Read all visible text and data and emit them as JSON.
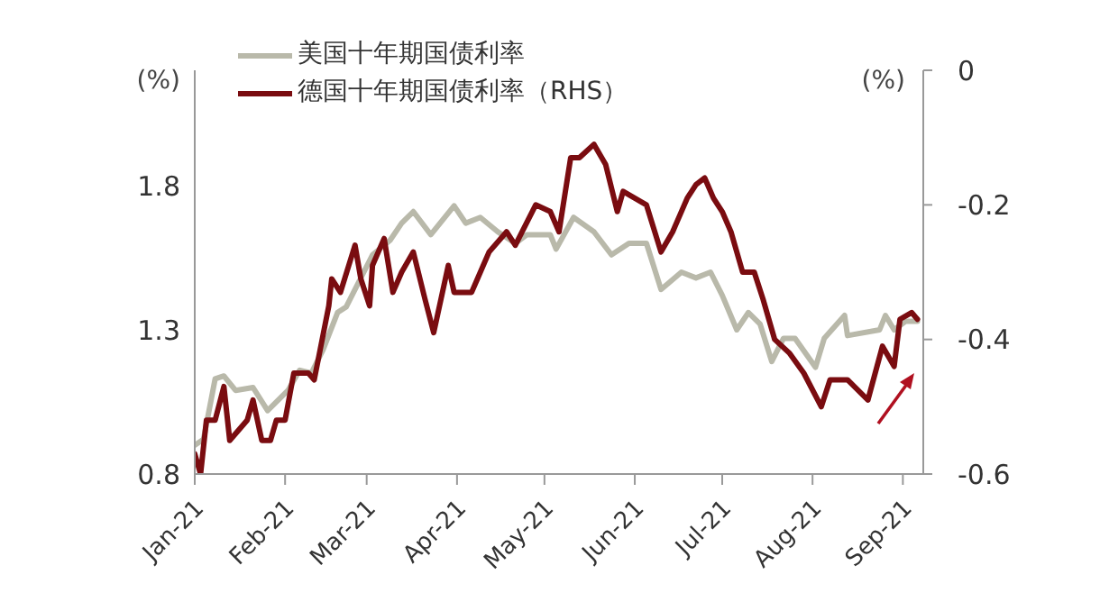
{
  "chart_data": {
    "type": "line",
    "ylabel": "(%)",
    "y2label": "(%)",
    "legend": "top left",
    "grid": false,
    "marker": "none",
    "line_style": "solid",
    "xlim": [
      "2021-01-01",
      "2021-09-08"
    ],
    "xticks": [
      {
        "value": "2021-01-01",
        "label": "Jan-21"
      },
      {
        "value": "2021-02-01",
        "label": "Feb-21"
      },
      {
        "value": "2021-03-01",
        "label": "Mar-21"
      },
      {
        "value": "2021-04-01",
        "label": "Apr-21"
      },
      {
        "value": "2021-05-01",
        "label": "May-21"
      },
      {
        "value": "2021-06-01",
        "label": "Jun-21"
      },
      {
        "value": "2021-07-01",
        "label": "Jul-21"
      },
      {
        "value": "2021-08-01",
        "label": "Aug-21"
      },
      {
        "value": "2021-09-01",
        "label": "Sep-21"
      }
    ],
    "ylim": [
      0.8,
      2.2
    ],
    "yticks": [
      0.8,
      1.3,
      1.8
    ],
    "y2lim": [
      -0.6,
      0
    ],
    "y2ticks": [
      -0.6,
      -0.4,
      -0.2,
      0
    ],
    "series": [
      {
        "name": "美国十年期国债利率",
        "color": "#b9b9aa",
        "x": [
          "2021-01-01",
          "2021-01-04",
          "2021-01-08",
          "2021-01-11",
          "2021-01-15",
          "2021-01-21",
          "2021-01-26",
          "2021-02-02",
          "2021-02-06",
          "2021-02-10",
          "2021-02-14",
          "2021-02-19",
          "2021-02-22",
          "2021-02-27",
          "2021-03-03",
          "2021-03-09",
          "2021-03-13",
          "2021-03-17",
          "2021-03-23",
          "2021-03-31",
          "2021-04-04",
          "2021-04-09",
          "2021-04-15",
          "2021-04-21",
          "2021-04-25",
          "2021-05-03",
          "2021-05-05",
          "2021-05-11",
          "2021-05-18",
          "2021-05-24",
          "2021-05-30",
          "2021-06-05",
          "2021-06-10",
          "2021-06-17",
          "2021-06-22",
          "2021-06-27",
          "2021-07-01",
          "2021-07-06",
          "2021-07-10",
          "2021-07-14",
          "2021-07-18",
          "2021-07-22",
          "2021-07-26",
          "2021-08-02",
          "2021-08-05",
          "2021-08-12",
          "2021-08-13",
          "2021-08-24",
          "2021-08-26",
          "2021-08-29",
          "2021-09-02",
          "2021-09-06"
        ],
        "values": [
          0.9,
          0.92,
          1.13,
          1.14,
          1.09,
          1.1,
          1.02,
          1.09,
          1.16,
          1.15,
          1.23,
          1.36,
          1.38,
          1.48,
          1.56,
          1.61,
          1.67,
          1.71,
          1.63,
          1.73,
          1.67,
          1.69,
          1.64,
          1.6,
          1.63,
          1.63,
          1.58,
          1.69,
          1.64,
          1.56,
          1.6,
          1.6,
          1.44,
          1.5,
          1.48,
          1.5,
          1.42,
          1.3,
          1.36,
          1.32,
          1.19,
          1.27,
          1.27,
          1.17,
          1.27,
          1.35,
          1.28,
          1.3,
          1.35,
          1.3,
          1.33,
          1.33
        ]
      },
      {
        "name": "德国十年期国债利率（RHS）",
        "color": "#7a0c10",
        "axis": "y2",
        "x": [
          "2021-01-01",
          "2021-01-03",
          "2021-01-05",
          "2021-01-08",
          "2021-01-11",
          "2021-01-13",
          "2021-01-19",
          "2021-01-21",
          "2021-01-24",
          "2021-01-27",
          "2021-01-29",
          "2021-02-01",
          "2021-02-04",
          "2021-02-09",
          "2021-02-11",
          "2021-02-16",
          "2021-02-17",
          "2021-02-20",
          "2021-02-25",
          "2021-02-27",
          "2021-03-02",
          "2021-03-03",
          "2021-03-07",
          "2021-03-10",
          "2021-03-13",
          "2021-03-17",
          "2021-03-21",
          "2021-03-24",
          "2021-03-29",
          "2021-03-31",
          "2021-04-06",
          "2021-04-08",
          "2021-04-12",
          "2021-04-18",
          "2021-04-21",
          "2021-04-28",
          "2021-05-03",
          "2021-05-06",
          "2021-05-10",
          "2021-05-13",
          "2021-05-18",
          "2021-05-22",
          "2021-05-26",
          "2021-05-28",
          "2021-06-01",
          "2021-06-05",
          "2021-06-10",
          "2021-06-14",
          "2021-06-19",
          "2021-06-22",
          "2021-06-25",
          "2021-06-28",
          "2021-07-01",
          "2021-07-04",
          "2021-07-08",
          "2021-07-12",
          "2021-07-15",
          "2021-07-19",
          "2021-07-24",
          "2021-07-29",
          "2021-08-04",
          "2021-08-07",
          "2021-08-13",
          "2021-08-20",
          "2021-08-25",
          "2021-08-29",
          "2021-08-31",
          "2021-09-04",
          "2021-09-06"
        ],
        "values": [
          -0.57,
          -0.6,
          -0.52,
          -0.52,
          -0.47,
          -0.55,
          -0.52,
          -0.49,
          -0.55,
          -0.55,
          -0.52,
          -0.52,
          -0.45,
          -0.45,
          -0.46,
          -0.35,
          -0.31,
          -0.33,
          -0.26,
          -0.31,
          -0.35,
          -0.29,
          -0.25,
          -0.33,
          -0.3,
          -0.27,
          -0.34,
          -0.39,
          -0.29,
          -0.33,
          -0.33,
          -0.31,
          -0.27,
          -0.24,
          -0.26,
          -0.2,
          -0.21,
          -0.24,
          -0.13,
          -0.13,
          -0.11,
          -0.14,
          -0.21,
          -0.18,
          -0.19,
          -0.2,
          -0.27,
          -0.24,
          -0.19,
          -0.17,
          -0.16,
          -0.19,
          -0.21,
          -0.24,
          -0.3,
          -0.3,
          -0.34,
          -0.4,
          -0.42,
          -0.45,
          -0.5,
          -0.46,
          -0.46,
          -0.49,
          -0.41,
          -0.44,
          -0.37,
          -0.36,
          -0.37
        ]
      }
    ]
  }
}
